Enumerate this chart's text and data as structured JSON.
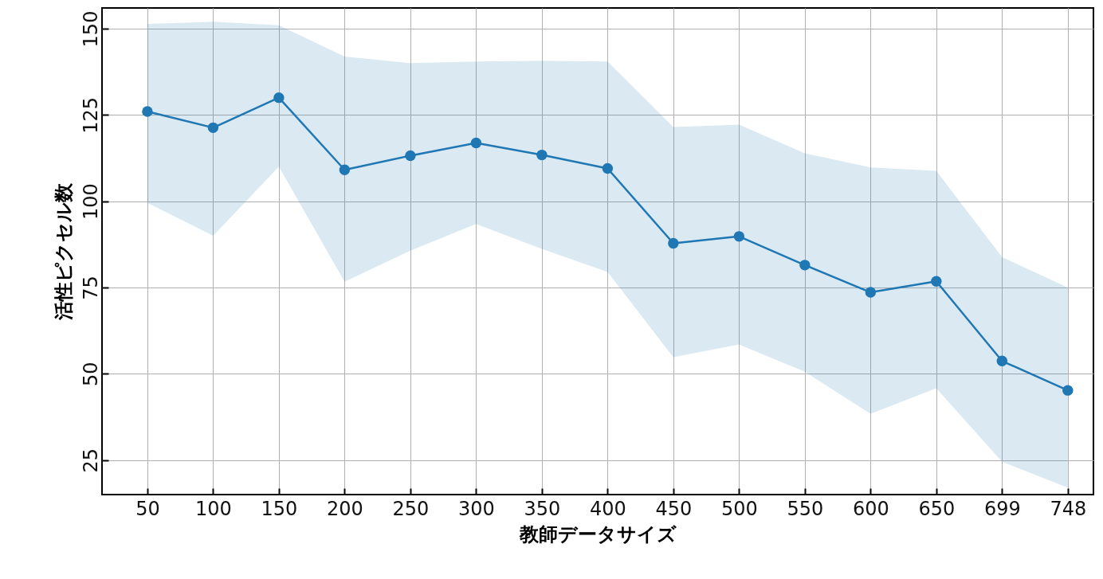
{
  "chart_data": {
    "type": "line",
    "xlabel": "教師データサイズ",
    "ylabel": "活性ピクセル数",
    "categories": [
      "50",
      "100",
      "150",
      "200",
      "250",
      "300",
      "350",
      "400",
      "450",
      "500",
      "550",
      "600",
      "650",
      "699",
      "748"
    ],
    "series": [
      {
        "color": "#1f77b4",
        "values": [
          126,
          121.3,
          130,
          109.1,
          113.2,
          116.9,
          113.4,
          109.5,
          87.8,
          89.8,
          81.5,
          73.6,
          76.8,
          53.7,
          45.2
        ],
        "lower": [
          99.5,
          90,
          110,
          76.7,
          85.7,
          93.4,
          86.2,
          79.5,
          54.8,
          58.5,
          50.6,
          38.4,
          45.8,
          24.5,
          17
        ],
        "upper": [
          151.4,
          152,
          151,
          141.9,
          140,
          140.5,
          140.7,
          140.5,
          121.5,
          122.2,
          113.9,
          109.8,
          108.8,
          83.8,
          75
        ]
      }
    ],
    "ylim": [
      15,
      156
    ],
    "yticks": [
      25,
      50,
      75,
      100,
      125,
      150
    ],
    "grid": true,
    "marker": "circle",
    "line_style": "solid"
  }
}
